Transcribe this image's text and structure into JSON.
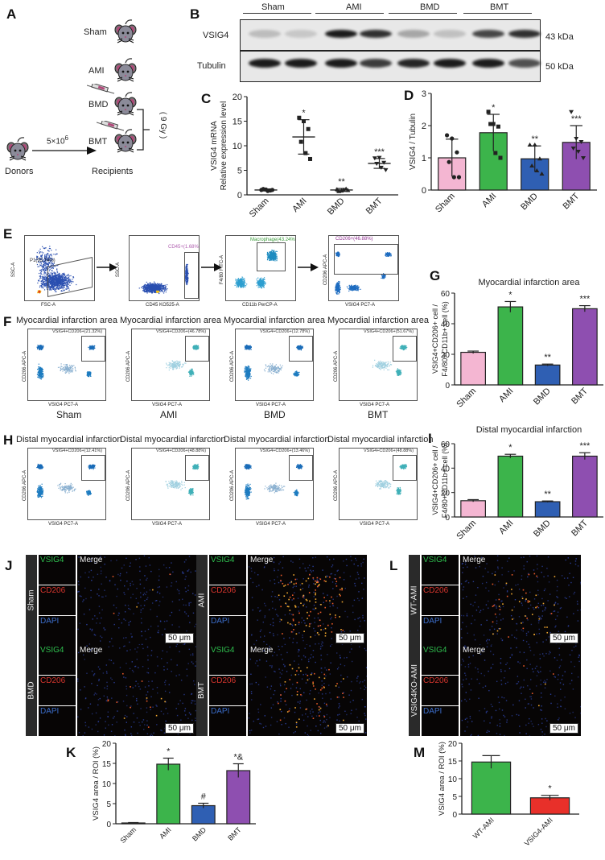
{
  "panels": {
    "A": {
      "label": "A",
      "groups": [
        "Sham",
        "AMI",
        "BMD",
        "BMT"
      ],
      "donors_label": "Donors",
      "recipients_label": "Recipients",
      "cell_count": "5×10",
      "cell_count_exp": "6",
      "irradiation": "( 9 Gy )"
    },
    "B": {
      "label": "B",
      "groups": [
        "Sham",
        "AMI",
        "BMD",
        "BMT"
      ],
      "rows": [
        {
          "name": "VSIG4",
          "kda": "43 kDa"
        },
        {
          "name": "Tubulin",
          "kda": "50 kDa"
        }
      ]
    },
    "E": {
      "label": "E",
      "plots": [
        {
          "gate": "P1(93.74%)",
          "xlabel": "FSC-A",
          "ylabel": "SSC-A"
        },
        {
          "gate": "CD45+(1.68%)",
          "xlabel": "CD45 KO525-A",
          "ylabel": "SSC-A"
        },
        {
          "gate": "Macrophage(43.24%)",
          "xlabel": "CD11b PerCP-A",
          "ylabel": "F4/80 FITC-A"
        },
        {
          "gate": "CD206+(46.88%)",
          "xlabel": "VSIG4 PC7-A",
          "ylabel": "CD206 APC-A"
        }
      ]
    },
    "F": {
      "label": "F",
      "title": "Myocardial infarction area",
      "xlabel": "VSIG4 PC7-A",
      "ylabel": "CD206 APC-A",
      "plots": [
        {
          "group": "Sham",
          "gate": "VSIG4+CD206+(21.32%)"
        },
        {
          "group": "AMI",
          "gate": "VSIG4+CD206+(46.78%)"
        },
        {
          "group": "BMD",
          "gate": "VSIG4+CD206+(12.78%)"
        },
        {
          "group": "BMT",
          "gate": "VSIG4+CD206+(51.67%)"
        }
      ]
    },
    "H": {
      "label": "H",
      "title": "Distal myocardial infarction",
      "xlabel": "VSIG4 PC7-A",
      "ylabel": "CD206 APC-A",
      "plots": [
        {
          "group": "Sham",
          "gate": "VSIG4+CD206+(12.41%)"
        },
        {
          "group": "AMI",
          "gate": "VSIG4+CD206+(48.88%)"
        },
        {
          "group": "BMD",
          "gate": "VSIG4+CD206+(13.46%)"
        },
        {
          "group": "BMT",
          "gate": "VSIG4+CD206+(48.88%)"
        }
      ]
    },
    "J": {
      "label": "J",
      "groups": [
        "Sham",
        "AMI",
        "BMD",
        "BMT"
      ],
      "channels": [
        "VSIG4",
        "CD206",
        "DAPI"
      ],
      "merge": "Merge",
      "scale": "50 μm"
    },
    "L": {
      "label": "L",
      "groups": [
        "WT-AMI",
        "VSIG4KO-AMI"
      ],
      "channels": [
        "VSIG4",
        "CD206",
        "DAPI"
      ],
      "merge": "Merge",
      "scale": "50 μm"
    },
    "C": {
      "label": "C"
    },
    "D": {
      "label": "D"
    },
    "G": {
      "label": "G"
    },
    "I": {
      "label": "I"
    },
    "K": {
      "label": "K"
    },
    "M": {
      "label": "M"
    }
  },
  "colors": {
    "sham": "#f4b6d2",
    "ami": "#3cb44b",
    "bmd": "#2f5fb3",
    "bmt": "#8e4fb0",
    "ko": "#e8302a"
  },
  "chart_data": [
    {
      "id": "C",
      "type": "scatter",
      "title": "",
      "ylabel": "VSIG4 mRNA\nRelative expression level",
      "categories": [
        "Sham",
        "AMI",
        "BMD",
        "BMT"
      ],
      "ylim": [
        0,
        20
      ],
      "yticks": [
        0,
        5,
        10,
        15,
        20
      ],
      "means": [
        1.0,
        11.8,
        1.0,
        6.4
      ],
      "sd": [
        0.2,
        3.5,
        0.3,
        1.0
      ],
      "points": [
        [
          1.0,
          1.1,
          0.9,
          1.2,
          0.8,
          1.0
        ],
        [
          15.7,
          15.0,
          13.4,
          10.8,
          8.5,
          7.3
        ],
        [
          1.1,
          0.8,
          1.2,
          0.7,
          1.0,
          0.9
        ],
        [
          7.5,
          7.6,
          6.6,
          6.4,
          5.6,
          5.1
        ]
      ],
      "significance": [
        "",
        "*",
        "**",
        "***"
      ]
    },
    {
      "id": "D",
      "type": "bar",
      "ylabel": "VSIG4 / Tubulin",
      "categories": [
        "Sham",
        "AMI",
        "BMD",
        "BMT"
      ],
      "ylim": [
        0,
        3
      ],
      "yticks": [
        0,
        1,
        2,
        3
      ],
      "values": [
        1.0,
        1.78,
        0.97,
        1.48
      ],
      "sd": [
        0.58,
        0.57,
        0.4,
        0.52
      ],
      "points": [
        [
          1.7,
          1.6,
          1.17,
          0.87,
          0.4,
          0.4
        ],
        [
          2.43,
          2.05,
          1.97,
          2.05,
          1.15,
          1.0
        ],
        [
          1.4,
          1.4,
          0.97,
          0.75,
          0.6,
          0.5
        ],
        [
          2.43,
          1.6,
          1.5,
          1.3,
          1.2,
          1.0
        ]
      ],
      "significance": [
        "",
        "*",
        "**",
        "***"
      ]
    },
    {
      "id": "G",
      "type": "bar",
      "title": "Myocardial infarction area",
      "ylabel": "VSIG4+CD206+ cell /\nF4/80+CD11b+ cell (%)",
      "categories": [
        "Sham",
        "AMI",
        "BMD",
        "BMT"
      ],
      "ylim": [
        0,
        60
      ],
      "yticks": [
        0,
        20,
        40,
        60
      ],
      "values": [
        21.3,
        51.0,
        13.0,
        49.8
      ],
      "sd": [
        0.8,
        3.5,
        0.6,
        2.0
      ],
      "significance": [
        "",
        "*",
        "**",
        "***"
      ]
    },
    {
      "id": "I",
      "type": "bar",
      "title": "Distal myocardial infarction",
      "ylabel": "VSIG4+CD206+ cell /\nF4/80+CD11b+ cell (%)",
      "categories": [
        "Sham",
        "AMI",
        "BMD",
        "BMT"
      ],
      "ylim": [
        0,
        60
      ],
      "yticks": [
        0,
        20,
        40,
        60
      ],
      "values": [
        13.3,
        49.8,
        12.5,
        49.8
      ],
      "sd": [
        0.9,
        1.5,
        0.6,
        2.8
      ],
      "significance": [
        "",
        "*",
        "**",
        "***"
      ]
    },
    {
      "id": "K",
      "type": "bar",
      "ylabel": "VSIG4 area / ROI (%)",
      "categories": [
        "Sham",
        "AMI",
        "BMD",
        "BMT"
      ],
      "ylim": [
        0,
        20
      ],
      "yticks": [
        0,
        5,
        10,
        15,
        20
      ],
      "values": [
        0.2,
        14.8,
        4.5,
        13.2
      ],
      "sd": [
        0.1,
        1.5,
        0.6,
        1.7
      ],
      "significance": [
        "",
        "*",
        "#",
        "*&"
      ]
    },
    {
      "id": "M",
      "type": "bar",
      "ylabel": "VSIG4 area / ROI (%)",
      "categories": [
        "WT-AMI",
        "VSIG4-AMI"
      ],
      "ylim": [
        0,
        20
      ],
      "yticks": [
        0,
        5,
        10,
        15,
        20
      ],
      "values": [
        14.7,
        4.6
      ],
      "sd": [
        1.8,
        0.7
      ],
      "significance": [
        "",
        "*"
      ]
    }
  ]
}
